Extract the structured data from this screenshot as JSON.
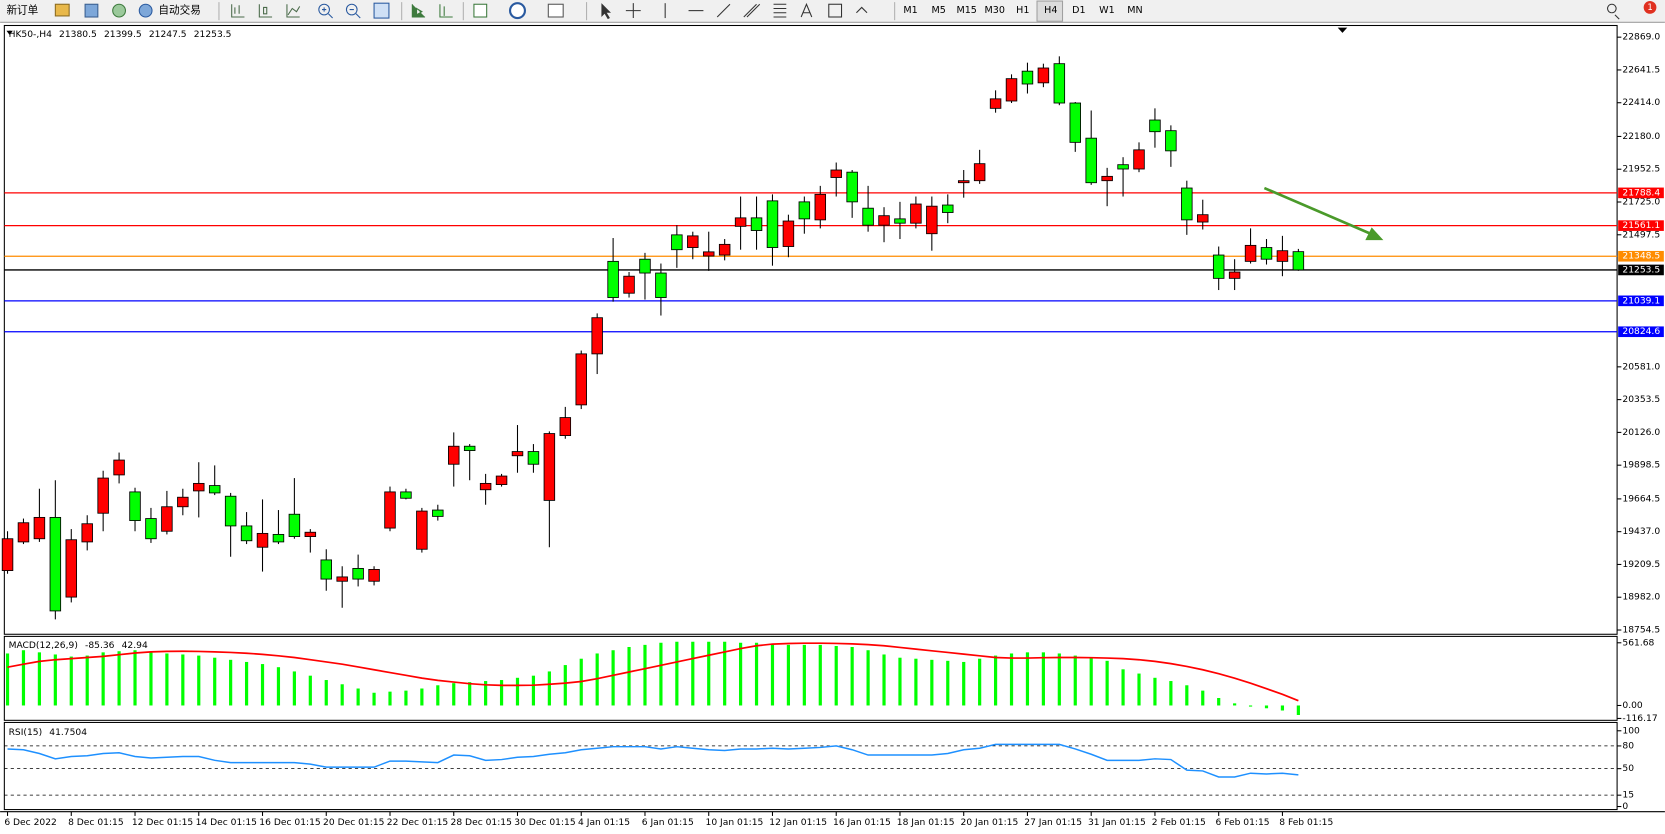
{
  "toolbar": {
    "new_order": "新订单",
    "auto_trading": "自动交易",
    "timeframes": [
      "M1",
      "M5",
      "M15",
      "M30",
      "H1",
      "H4",
      "D1",
      "W1",
      "MN"
    ],
    "alerts": "1"
  },
  "chart_data": [
    {
      "type": "candlestick",
      "title": "HK50-,H4",
      "up_color": "#ff0000",
      "down_color": "#00ff00",
      "categories": [
        "6 Dec 2022",
        null,
        null,
        null,
        "8 Dec 01:15",
        null,
        null,
        null,
        "12 Dec 01:15",
        null,
        null,
        null,
        "14 Dec 01:15",
        null,
        null,
        null,
        "16 Dec 01:15",
        null,
        null,
        null,
        "20 Dec 01:15",
        null,
        null,
        null,
        "22 Dec 01:15",
        null,
        null,
        null,
        "28 Dec 01:15",
        null,
        null,
        null,
        "30 Dec 01:15",
        null,
        null,
        null,
        "4 Jan 01:15",
        null,
        null,
        null,
        "6 Jan 01:15",
        null,
        null,
        null,
        "10 Jan 01:15",
        null,
        null,
        null,
        "12 Jan 01:15",
        null,
        null,
        null,
        "16 Jan 01:15",
        null,
        null,
        null,
        "18 Jan 01:15",
        null,
        null,
        null,
        "20 Jan 01:15",
        null,
        null,
        null,
        "27 Jan 01:15",
        null,
        null,
        null,
        "31 Jan 01:15",
        null,
        null,
        null,
        "2 Feb 01:15",
        null,
        null,
        null,
        "6 Feb 01:15",
        null,
        null,
        null,
        "8 Feb 01:15",
        null
      ],
      "open": [
        19167,
        19366,
        19388,
        19536,
        18983,
        19366,
        19565,
        19831,
        19713,
        19528,
        19440,
        19610,
        19720,
        19757,
        19683,
        19477,
        19329,
        19418,
        19558,
        19403,
        19241,
        19093,
        19182,
        19093,
        19462,
        19713,
        19315,
        19587,
        19905,
        20030,
        19728,
        19764,
        19964,
        19993,
        19654,
        20104,
        20317,
        20671,
        21313,
        21092,
        21328,
        21232,
        21497,
        21409,
        21350,
        21357,
        21556,
        21615,
        21733,
        21416,
        21726,
        21601,
        21895,
        21932,
        21682,
        21564,
        21608,
        21578,
        21505,
        21704,
        21859,
        21873,
        22375,
        22426,
        22633,
        22552,
        22685,
        22412,
        22168,
        21873,
        21984,
        21954,
        22294,
        22220,
        21822,
        21586,
        21357,
        21195,
        21313,
        21409,
        21313,
        21380.5
      ],
      "high": [
        19440,
        19528,
        19735,
        19794,
        19455,
        19551,
        19860,
        19986,
        19742,
        19602,
        19720,
        19735,
        19919,
        19897,
        19706,
        19573,
        19661,
        19587,
        19809,
        19455,
        19315,
        19197,
        19278,
        19197,
        19750,
        19735,
        19602,
        19624,
        20126,
        20045,
        19838,
        19838,
        20177,
        20045,
        20133,
        20303,
        20694,
        20952,
        21475,
        21239,
        21372,
        21298,
        21564,
        21519,
        21519,
        21468,
        21763,
        21763,
        21778,
        21637,
        21763,
        21837,
        21999,
        21947,
        21837,
        21689,
        21726,
        21763,
        21763,
        21778,
        21947,
        22087,
        22500,
        22611,
        22692,
        22685,
        22736,
        22419,
        22360,
        21962,
        22036,
        22139,
        22375,
        22257,
        21873,
        21741,
        21416,
        21328,
        21542,
        21468,
        21490,
        21399.5
      ],
      "low": [
        19145,
        19351,
        19366,
        18828,
        18946,
        19307,
        19440,
        19772,
        19440,
        19359,
        19418,
        19551,
        19536,
        19691,
        19263,
        19351,
        19160,
        19351,
        19388,
        19292,
        19027,
        18909,
        19057,
        19064,
        19440,
        19661,
        19292,
        19514,
        19750,
        19794,
        19624,
        19750,
        19846,
        19846,
        19329,
        20082,
        20288,
        20531,
        21033,
        21062,
        21048,
        20937,
        21268,
        21328,
        21247,
        21320,
        21394,
        21394,
        21283,
        21342,
        21505,
        21542,
        21763,
        21615,
        21519,
        21446,
        21468,
        21542,
        21387,
        21578,
        21755,
        21851,
        22345,
        22412,
        22478,
        22522,
        22397,
        22073,
        21844,
        21696,
        21763,
        21932,
        22102,
        21969,
        21497,
        21534,
        21114,
        21114,
        21298,
        21291,
        21210,
        21247.5
      ],
      "close": [
        19388,
        19499,
        19536,
        18887,
        19381,
        19492,
        19809,
        19934,
        19514,
        19388,
        19610,
        19676,
        19772,
        19706,
        19477,
        19374,
        19425,
        19366,
        19403,
        19433,
        19108,
        19123,
        19108,
        19175,
        19713,
        19669,
        19580,
        19543,
        20030,
        20000,
        19772,
        19823,
        19993,
        19905,
        20118,
        20229,
        20671,
        20922,
        21062,
        21210,
        21232,
        21062,
        21394,
        21490,
        21379,
        21431,
        21615,
        21527,
        21409,
        21593,
        21608,
        21778,
        21947,
        21726,
        21564,
        21630,
        21578,
        21711,
        21696,
        21652,
        21873,
        21991,
        22441,
        22581,
        22544,
        22655,
        22412,
        22139,
        21859,
        21903,
        21954,
        22087,
        22213,
        22080,
        21601,
        21637,
        21195,
        21239,
        21424,
        21328,
        21387,
        21253.5
      ],
      "ylim": [
        18725,
        22950
      ],
      "yticks": [
        {
          "value": 22869,
          "label": "22869.0"
        },
        22641.5,
        {
          "value": 22414,
          "label": "22414.0"
        },
        {
          "value": 22180,
          "label": "22180.0"
        },
        21952.5,
        {
          "value": 21725,
          "label": "21725.0"
        },
        21497.5,
        {
          "value": 20581,
          "label": "20581.0"
        },
        20353.5,
        {
          "value": 20126,
          "label": "20126.0"
        },
        19898.5,
        19664.5,
        {
          "value": 19437,
          "label": "19437.0"
        },
        19209.5,
        {
          "value": 18982,
          "label": "18982.0"
        },
        18754.5
      ],
      "levels": [
        {
          "value": 21788.4,
          "color": "#ff0000"
        },
        {
          "value": 21561.1,
          "color": "#ff0000"
        },
        {
          "value": 21348.5,
          "color": "#ff8c00"
        },
        {
          "value": 21253.5,
          "color": "#000000"
        },
        {
          "value": 21039.1,
          "color": "#0000ff"
        },
        {
          "value": 20824.6,
          "color": "#0000ff"
        }
      ]
    },
    {
      "type": "macd",
      "title": "MACD(12,26,9)",
      "histogram_color": "#00ff00",
      "signal_color": "#ff0000",
      "histogram": [
        466,
        495,
        476,
        457,
        438,
        447,
        476,
        486,
        495,
        476,
        466,
        457,
        447,
        428,
        409,
        390,
        371,
        343,
        305,
        267,
        228,
        190,
        152,
        114,
        124,
        133,
        152,
        181,
        200,
        209,
        219,
        228,
        248,
        267,
        305,
        362,
        419,
        466,
        495,
        524,
        543,
        562,
        571,
        571,
        571,
        571,
        562,
        562,
        552,
        543,
        543,
        543,
        533,
        524,
        495,
        457,
        428,
        419,
        409,
        400,
        390,
        419,
        447,
        466,
        476,
        476,
        466,
        447,
        428,
        400,
        324,
        286,
        248,
        219,
        181,
        133,
        67,
        19,
        -10,
        -25,
        -45,
        -85.36
      ],
      "signal": [
        343,
        370,
        395,
        410,
        420,
        430,
        440,
        455,
        470,
        480,
        485,
        486,
        484,
        480,
        475,
        468,
        458,
        445,
        430,
        410,
        390,
        370,
        345,
        320,
        295,
        270,
        245,
        225,
        210,
        195,
        185,
        180,
        180,
        182,
        190,
        200,
        215,
        240,
        270,
        300,
        330,
        360,
        390,
        420,
        450,
        480,
        510,
        535,
        550,
        555,
        558,
        558,
        556,
        552,
        545,
        535,
        520,
        505,
        490,
        475,
        460,
        445,
        430,
        425,
        425,
        428,
        430,
        430,
        428,
        425,
        420,
        410,
        395,
        375,
        350,
        320,
        285,
        245,
        200,
        150,
        100,
        42.94
      ],
      "ylim": [
        -133,
        619
      ],
      "yticks": [
        561.68,
        {
          "value": 0,
          "label": "0.00"
        },
        -116.17
      ]
    },
    {
      "type": "rsi",
      "title": "RSI(15)",
      "color": "#1e90ff",
      "values": [
        76,
        75,
        70,
        63,
        66,
        67,
        70,
        71,
        66,
        64,
        65,
        66,
        66,
        61,
        58,
        58,
        58,
        58,
        58,
        56,
        52,
        52,
        52,
        52,
        60,
        60,
        59,
        58,
        68,
        67,
        61,
        62,
        65,
        66,
        69,
        71,
        75,
        77,
        79,
        79,
        79,
        76,
        79,
        77,
        75,
        74,
        76,
        76,
        77,
        76,
        77,
        78,
        80,
        75,
        68,
        68,
        68,
        68,
        68,
        70,
        75,
        77,
        82,
        82,
        82,
        82,
        82,
        76,
        69,
        61,
        61,
        61,
        63,
        62,
        48,
        47,
        39,
        39,
        44,
        43,
        44,
        41.7504
      ],
      "levels": [
        80,
        50,
        15
      ],
      "ylim": [
        -4,
        111
      ],
      "yticks": [
        100,
        80,
        50,
        15,
        0
      ]
    }
  ]
}
